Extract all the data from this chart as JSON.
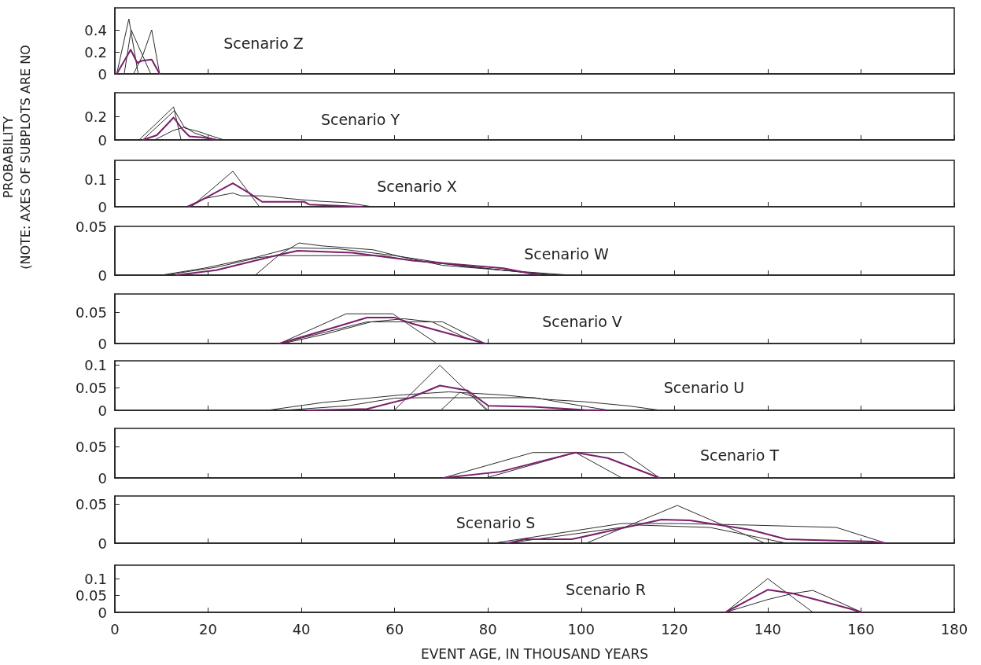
{
  "chart_data": [
    {
      "type": "line",
      "title": "Scenario Z",
      "xlim": [
        0,
        180
      ],
      "xticks": [
        0,
        20,
        40,
        60,
        80,
        100,
        120,
        140,
        160,
        180
      ],
      "ylim": [
        0,
        0.6
      ],
      "yticks": [
        0,
        0.2,
        0.4
      ],
      "tick_labels": "y",
      "series": [
        {
          "color": "#2b2b2b",
          "x": [
            0.4,
            3,
            5
          ],
          "values": [
            0,
            0.5,
            0
          ]
        },
        {
          "color": "#2b2b2b",
          "x": [
            2,
            3.5,
            7.7
          ],
          "values": [
            0,
            0.4,
            0
          ]
        },
        {
          "color": "#2b2b2b",
          "x": [
            4,
            6,
            7.9,
            9.6
          ],
          "values": [
            0,
            0.17,
            0.4,
            0
          ]
        },
        {
          "color": "#7a1f6a",
          "x": [
            0.4,
            3.4,
            4.8,
            5.9,
            7.9,
            9.6
          ],
          "values": [
            0,
            0.22,
            0.1,
            0.12,
            0.13,
            0
          ]
        }
      ]
    },
    {
      "type": "line",
      "title": "Scenario Y",
      "xlim": [
        0,
        180
      ],
      "xticks": [
        0,
        20,
        40,
        60,
        80,
        100,
        120,
        140,
        160,
        180
      ],
      "ylim": [
        0,
        0.4
      ],
      "yticks": [
        0,
        0.2
      ],
      "tick_labels": "y",
      "series": [
        {
          "color": "#2b2b2b",
          "x": [
            5.2,
            12.6,
            14.2
          ],
          "values": [
            0,
            0.28,
            0
          ]
        },
        {
          "color": "#2b2b2b",
          "x": [
            6,
            12.8,
            15,
            18,
            21,
            23.4
          ],
          "values": [
            0,
            0.25,
            0.1,
            0.07,
            0.03,
            0
          ]
        },
        {
          "color": "#2b2b2b",
          "x": [
            8.5,
            12.5,
            15,
            17,
            20,
            22
          ],
          "values": [
            0,
            0.08,
            0.11,
            0.06,
            0.02,
            0
          ]
        },
        {
          "color": "#7a1f6a",
          "x": [
            6,
            9,
            12.6,
            14.5,
            16,
            19,
            22
          ],
          "values": [
            0,
            0.04,
            0.19,
            0.09,
            0.03,
            0.02,
            0
          ]
        }
      ]
    },
    {
      "type": "line",
      "title": "Scenario X",
      "xlim": [
        0,
        180
      ],
      "xticks": [
        0,
        20,
        40,
        60,
        80,
        100,
        120,
        140,
        160,
        180
      ],
      "ylim": [
        0,
        0.17
      ],
      "yticks": [
        0,
        0.1
      ],
      "tick_labels": "y",
      "series": [
        {
          "color": "#2b2b2b",
          "x": [
            16.4,
            25.3,
            31
          ],
          "values": [
            0,
            0.13,
            0
          ]
        },
        {
          "color": "#2b2b2b",
          "x": [
            15.3,
            19.2,
            25.3,
            27.1,
            31.6,
            37.2,
            44,
            49.6,
            55.2
          ],
          "values": [
            0,
            0.03,
            0.05,
            0.04,
            0.04,
            0.03,
            0.02,
            0.015,
            0
          ]
        },
        {
          "color": "#7a1f6a",
          "x": [
            15.9,
            19.2,
            25.3,
            28.8,
            31.6,
            40.6,
            41.7,
            53
          ],
          "values": [
            0,
            0.03,
            0.086,
            0.05,
            0.018,
            0.018,
            0.008,
            0
          ]
        }
      ]
    },
    {
      "type": "line",
      "title": "Scenario W",
      "ylabel": "PROBABILITY\n(NOTE: AXES OF SUBPLOTS ARE NO",
      "xlim": [
        0,
        180
      ],
      "xticks": [
        0,
        20,
        40,
        60,
        80,
        100,
        120,
        140,
        160,
        180
      ],
      "ylim": [
        0,
        0.05
      ],
      "yticks": [
        0,
        0.05
      ],
      "tick_labels": "y",
      "series": [
        {
          "color": "#2b2b2b",
          "x": [
            30.1,
            35.3,
            39.5,
            44.4,
            55.4,
            61.2,
            70.3,
            83.3,
            97.6
          ],
          "values": [
            0,
            0.021,
            0.033,
            0.03,
            0.026,
            0.019,
            0.01,
            0.005,
            0
          ]
        },
        {
          "color": "#2b2b2b",
          "x": [
            10.7,
            21.7,
            30.8,
            35.3,
            57.3,
            63.8,
            83.3,
            93
          ],
          "values": [
            0,
            0.008,
            0.018,
            0.02,
            0.02,
            0.015,
            0.005,
            0
          ]
        },
        {
          "color": "#2b2b2b",
          "x": [
            10,
            19,
            30,
            38,
            48,
            60,
            75,
            90,
            95
          ],
          "values": [
            0,
            0.007,
            0.018,
            0.028,
            0.027,
            0.02,
            0.009,
            0.002,
            0
          ]
        },
        {
          "color": "#7a1f6a",
          "x": [
            13.2,
            21.7,
            35.3,
            39.2,
            50.9,
            63.8,
            83.3,
            91
          ],
          "values": [
            0,
            0.005,
            0.021,
            0.025,
            0.023,
            0.015,
            0.007,
            0
          ]
        }
      ]
    },
    {
      "type": "line",
      "title": "Scenario V",
      "xlim": [
        0,
        180
      ],
      "xticks": [
        0,
        20,
        40,
        60,
        80,
        100,
        120,
        140,
        160,
        180
      ],
      "ylim": [
        0,
        0.08
      ],
      "yticks": [
        0,
        0.05
      ],
      "tick_labels": "y",
      "series": [
        {
          "color": "#2b2b2b",
          "x": [
            35.3,
            49.6,
            59.6,
            69
          ],
          "values": [
            0,
            0.048,
            0.048,
            0
          ]
        },
        {
          "color": "#2b2b2b",
          "x": [
            35.3,
            54.1,
            70.3,
            79.4
          ],
          "values": [
            0,
            0.035,
            0.035,
            0
          ]
        },
        {
          "color": "#2b2b2b",
          "x": [
            36,
            45,
            55,
            62,
            68,
            75,
            79
          ],
          "values": [
            0,
            0.015,
            0.035,
            0.04,
            0.035,
            0.01,
            0
          ]
        },
        {
          "color": "#7a1f6a",
          "x": [
            35.3,
            44.4,
            54.1,
            59.9,
            63.8,
            79.4
          ],
          "values": [
            0,
            0.02,
            0.042,
            0.042,
            0.032,
            0
          ]
        }
      ]
    },
    {
      "type": "line",
      "title": "Scenario U",
      "xlim": [
        0,
        180
      ],
      "xticks": [
        0,
        20,
        40,
        60,
        80,
        100,
        120,
        140,
        160,
        180
      ],
      "ylim": [
        0,
        0.11
      ],
      "yticks": [
        0,
        0.05,
        0.1
      ],
      "tick_labels": "y",
      "series": [
        {
          "color": "#2b2b2b",
          "x": [
            59.9,
            69.7,
            79.7
          ],
          "values": [
            0,
            0.1,
            0
          ]
        },
        {
          "color": "#2b2b2b",
          "x": [
            32.7,
            44.4,
            61.2,
            71.6,
            83.3,
            93,
            100.7,
            110,
            117
          ],
          "values": [
            0,
            0.017,
            0.034,
            0.041,
            0.034,
            0.024,
            0.019,
            0.01,
            0
          ]
        },
        {
          "color": "#2b2b2b",
          "x": [
            36,
            50,
            60,
            66,
            90,
            100,
            106
          ],
          "values": [
            0,
            0.01,
            0.027,
            0.028,
            0.028,
            0.01,
            0
          ]
        },
        {
          "color": "#2b2b2b",
          "x": [
            69.9,
            74,
            77,
            80
          ],
          "values": [
            0,
            0.04,
            0.03,
            0
          ]
        },
        {
          "color": "#7a1f6a",
          "x": [
            41.1,
            54.1,
            63.2,
            69.7,
            75.6,
            80.1,
            89.8,
            100.7,
            105
          ],
          "values": [
            0,
            0.003,
            0.027,
            0.055,
            0.044,
            0.01,
            0.008,
            0.001,
            0
          ]
        }
      ]
    },
    {
      "type": "line",
      "title": "Scenario T",
      "xlim": [
        0,
        180
      ],
      "xticks": [
        0,
        20,
        40,
        60,
        80,
        100,
        120,
        140,
        160,
        180
      ],
      "ylim": [
        0,
        0.08
      ],
      "yticks": [
        0,
        0.05
      ],
      "tick_labels": "y",
      "series": [
        {
          "color": "#2b2b2b",
          "x": [
            70.4,
            89.6,
            109.1,
            116.8
          ],
          "values": [
            0,
            0.041,
            0.041,
            0
          ]
        },
        {
          "color": "#2b2b2b",
          "x": [
            79.6,
            98.8,
            108.7
          ],
          "values": [
            0,
            0.041,
            0
          ]
        },
        {
          "color": "#7a1f6a",
          "x": [
            70.4,
            82.6,
            98.8,
            105.7,
            116.8
          ],
          "values": [
            0,
            0.01,
            0.041,
            0.032,
            0
          ]
        }
      ]
    },
    {
      "type": "line",
      "title": "Scenario S",
      "xlim": [
        0,
        180
      ],
      "xticks": [
        0,
        20,
        40,
        60,
        80,
        100,
        120,
        140,
        160,
        180
      ],
      "ylim": [
        0,
        0.06
      ],
      "yticks": [
        0,
        0.05
      ],
      "tick_labels": "y",
      "series": [
        {
          "color": "#2b2b2b",
          "x": [
            101.1,
            120.6,
            139.4
          ],
          "values": [
            0,
            0.048,
            0
          ]
        },
        {
          "color": "#2b2b2b",
          "x": [
            81.2,
            108.7,
            121,
            136.3,
            154.7,
            165.4
          ],
          "values": [
            0,
            0.025,
            0.025,
            0.023,
            0.02,
            0
          ]
        },
        {
          "color": "#2b2b2b",
          "x": [
            84.2,
            112.3,
            127.6,
            144
          ],
          "values": [
            0,
            0.023,
            0.02,
            0
          ]
        },
        {
          "color": "#7a1f6a",
          "x": [
            84.2,
            88,
            98,
            117.2,
            123.3,
            136.3,
            144,
            162.4,
            165
          ],
          "values": [
            0,
            0.005,
            0.005,
            0.03,
            0.029,
            0.017,
            0.005,
            0.002,
            0
          ]
        }
      ]
    },
    {
      "type": "line",
      "title": "Scenario R",
      "xlabel": "EVENT AGE, IN THOUSAND YEARS",
      "xlim": [
        0,
        180
      ],
      "xticks": [
        0,
        20,
        40,
        60,
        80,
        100,
        120,
        140,
        160,
        180
      ],
      "ylim": [
        0,
        0.14
      ],
      "yticks": [
        0,
        0.05,
        0.1
      ],
      "series": [
        {
          "color": "#2b2b2b",
          "x": [
            130.9,
            140,
            149.7
          ],
          "values": [
            0,
            0.1,
            0
          ]
        },
        {
          "color": "#2b2b2b",
          "x": [
            130.9,
            140,
            145.4,
            149.7,
            156.2,
            160.2
          ],
          "values": [
            0,
            0.038,
            0.056,
            0.065,
            0.025,
            0
          ]
        },
        {
          "color": "#7a1f6a",
          "x": [
            130.9,
            140,
            145.4,
            150.8,
            157.5,
            160.2
          ],
          "values": [
            0,
            0.067,
            0.056,
            0.036,
            0.011,
            0
          ]
        }
      ]
    }
  ]
}
